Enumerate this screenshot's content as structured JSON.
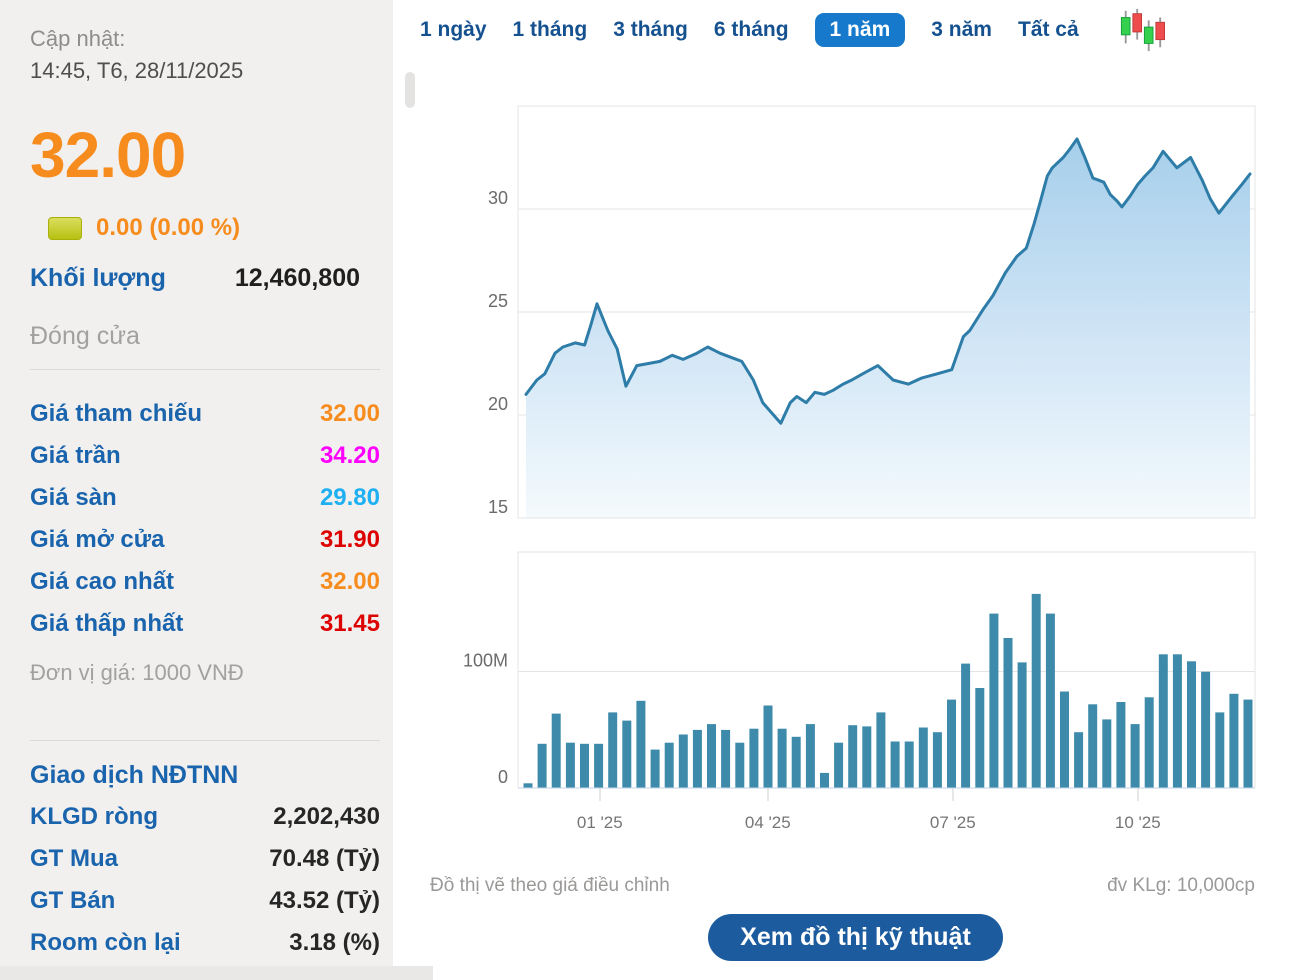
{
  "update": {
    "label": "Cập nhật:",
    "datetime": "14:45, T6, 28/11/2025"
  },
  "price": {
    "current": "32.00",
    "change": "0.00 (0.00 %)"
  },
  "volume": {
    "label": "Khối lượng",
    "value": "12,460,800"
  },
  "session_label": "Đóng cửa",
  "price_table": [
    {
      "label": "Giá tham chiếu",
      "value": "32.00",
      "color": "#f78c1e"
    },
    {
      "label": "Giá trần",
      "value": "34.20",
      "color": "#ff00ff"
    },
    {
      "label": "Giá sàn",
      "value": "29.80",
      "color": "#1eb0f2"
    },
    {
      "label": "Giá mở cửa",
      "value": "31.90",
      "color": "#dd0202"
    },
    {
      "label": "Giá cao nhất",
      "value": "32.00",
      "color": "#f78c1e"
    },
    {
      "label": "Giá thấp nhất",
      "value": "31.45",
      "color": "#dd0202"
    }
  ],
  "price_unit": "Đơn vị giá: 1000 VNĐ",
  "foreign": {
    "title": "Giao dịch NĐTNN",
    "rows": [
      {
        "label": "KLGD ròng",
        "value": "2,202,430"
      },
      {
        "label": "GT Mua",
        "value": "70.48 (Tỷ)"
      },
      {
        "label": "GT Bán",
        "value": "43.52 (Tỷ)"
      },
      {
        "label": "Room còn lại",
        "value": "3.18 (%)"
      }
    ]
  },
  "tabs": [
    {
      "label": "1 ngày"
    },
    {
      "label": "1 tháng"
    },
    {
      "label": "3 tháng"
    },
    {
      "label": "6 tháng"
    },
    {
      "label": "1 năm",
      "active": true
    },
    {
      "label": "3 năm"
    },
    {
      "label": "Tất cả"
    }
  ],
  "icons": {
    "range_chart_type": "candlestick-icon",
    "change_indicator": "no-change-square-icon"
  },
  "colors": {
    "orange": "#f78c1e",
    "sidebar_blue": "#1a64ad",
    "tab_blue": "#15518f",
    "tab_active_bg": "#1779cc",
    "button_bg": "#1b5b9e",
    "line_blue": "#2e7ca8",
    "bar_teal": "#3e8aab"
  },
  "footer": {
    "note": "Đồ thị vẽ theo giá điều chỉnh",
    "unit": "đv KLg: 10,000cp",
    "button": "Xem đồ thị kỹ thuật"
  },
  "chart_data": [
    {
      "type": "area",
      "name": "adjusted-price-1-year",
      "ylim": [
        15,
        35
      ],
      "yticks": [
        {
          "v": 15,
          "label": "15"
        },
        {
          "v": 20,
          "label": "20"
        },
        {
          "v": 25,
          "label": "25"
        },
        {
          "v": 30,
          "label": "30"
        }
      ],
      "line_color": "#2e7ca8",
      "fill_top": "#9fcbe9",
      "fill_mid": "#cfe4f5",
      "fill_bottom": "#f4fafd",
      "points": [
        [
          0.0,
          21.0
        ],
        [
          0.015,
          21.7
        ],
        [
          0.026,
          22.0
        ],
        [
          0.04,
          23.0
        ],
        [
          0.051,
          23.3
        ],
        [
          0.068,
          23.5
        ],
        [
          0.081,
          23.4
        ],
        [
          0.089,
          24.3
        ],
        [
          0.098,
          25.4
        ],
        [
          0.113,
          24.1
        ],
        [
          0.126,
          23.2
        ],
        [
          0.138,
          21.4
        ],
        [
          0.153,
          22.4
        ],
        [
          0.169,
          22.5
        ],
        [
          0.185,
          22.6
        ],
        [
          0.202,
          22.9
        ],
        [
          0.217,
          22.7
        ],
        [
          0.236,
          23.0
        ],
        [
          0.251,
          23.3
        ],
        [
          0.268,
          23.0
        ],
        [
          0.283,
          22.8
        ],
        [
          0.298,
          22.6
        ],
        [
          0.314,
          21.7
        ],
        [
          0.327,
          20.6
        ],
        [
          0.352,
          19.6
        ],
        [
          0.365,
          20.6
        ],
        [
          0.374,
          20.9
        ],
        [
          0.387,
          20.6
        ],
        [
          0.399,
          21.1
        ],
        [
          0.412,
          21.0
        ],
        [
          0.424,
          21.2
        ],
        [
          0.438,
          21.5
        ],
        [
          0.45,
          21.7
        ],
        [
          0.465,
          22.0
        ],
        [
          0.486,
          22.4
        ],
        [
          0.507,
          21.7
        ],
        [
          0.528,
          21.5
        ],
        [
          0.547,
          21.8
        ],
        [
          0.568,
          22.0
        ],
        [
          0.588,
          22.2
        ],
        [
          0.604,
          23.8
        ],
        [
          0.613,
          24.1
        ],
        [
          0.631,
          25.1
        ],
        [
          0.645,
          25.8
        ],
        [
          0.662,
          26.9
        ],
        [
          0.678,
          27.7
        ],
        [
          0.691,
          28.1
        ],
        [
          0.702,
          29.3
        ],
        [
          0.71,
          30.3
        ],
        [
          0.72,
          31.6
        ],
        [
          0.727,
          32.0
        ],
        [
          0.742,
          32.5
        ],
        [
          0.751,
          32.9
        ],
        [
          0.761,
          33.4
        ],
        [
          0.772,
          32.5
        ],
        [
          0.783,
          31.5
        ],
        [
          0.791,
          31.4
        ],
        [
          0.798,
          31.3
        ],
        [
          0.807,
          30.7
        ],
        [
          0.816,
          30.4
        ],
        [
          0.823,
          30.1
        ],
        [
          0.834,
          30.6
        ],
        [
          0.845,
          31.2
        ],
        [
          0.855,
          31.6
        ],
        [
          0.866,
          32.0
        ],
        [
          0.88,
          32.8
        ],
        [
          0.899,
          32.0
        ],
        [
          0.918,
          32.5
        ],
        [
          0.934,
          31.4
        ],
        [
          0.945,
          30.5
        ],
        [
          0.957,
          29.8
        ],
        [
          0.975,
          30.6
        ],
        [
          0.989,
          31.2
        ],
        [
          1.0,
          31.7
        ]
      ]
    },
    {
      "type": "bar",
      "name": "volume-millions",
      "ylim": [
        0,
        203
      ],
      "yticks": [
        {
          "v": 0,
          "label": "0"
        },
        {
          "v": 100,
          "label": "100M"
        }
      ],
      "bar_color": "#3e8aab",
      "values": [
        4,
        38,
        64,
        39,
        38,
        38,
        65,
        58,
        75,
        33,
        39,
        46,
        50,
        55,
        50,
        39,
        51,
        71,
        51,
        44,
        55,
        13,
        39,
        54,
        53,
        65,
        40,
        40,
        52,
        48,
        76,
        107,
        86,
        150,
        129,
        108,
        167,
        150,
        83,
        48,
        72,
        59,
        74,
        55,
        78,
        115,
        115,
        109,
        100,
        65,
        81,
        76
      ],
      "xticks": [
        {
          "pos": 0.111,
          "label": "01 '25"
        },
        {
          "pos": 0.339,
          "label": "04 '25"
        },
        {
          "pos": 0.59,
          "label": "07 '25"
        },
        {
          "pos": 0.841,
          "label": "10 '25"
        }
      ]
    }
  ]
}
